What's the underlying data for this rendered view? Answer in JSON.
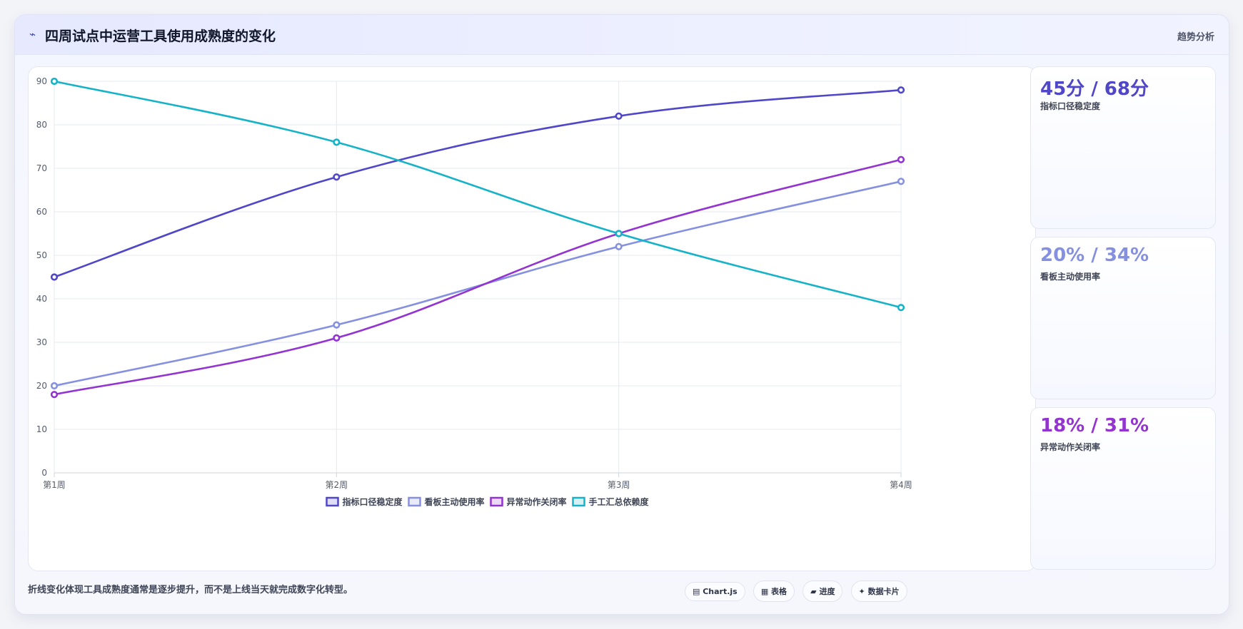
{
  "header": {
    "icon": "⌁",
    "title": "四周试点中运营工具使用成熟度的变化",
    "right_label": "趋势分析"
  },
  "chart_data": {
    "type": "line",
    "categories": [
      "第1周",
      "第2周",
      "第3周",
      "第4周"
    ],
    "ylim": [
      0,
      90
    ],
    "yticks": [
      0,
      10,
      20,
      30,
      40,
      50,
      60,
      70,
      80,
      90
    ],
    "grid": true,
    "legend_position": "bottom",
    "series": [
      {
        "name": "指标口径稳定度",
        "values": [
          45,
          68,
          82,
          88
        ],
        "color": "#4f46c8"
      },
      {
        "name": "看板主动使用率",
        "values": [
          20,
          34,
          52,
          67
        ],
        "color": "#8590e0"
      },
      {
        "name": "异常动作关闭率",
        "values": [
          18,
          31,
          55,
          72
        ],
        "color": "#9333d0"
      },
      {
        "name": "手工汇总依赖度",
        "values": [
          90,
          76,
          55,
          38
        ],
        "color": "#16b3c8"
      }
    ]
  },
  "stats": [
    {
      "value": "45分 / 68分",
      "label": "指标口径稳定度",
      "color": "#4f46c8"
    },
    {
      "value": "20% / 34%",
      "label": "看板主动使用率",
      "color": "#8590e0"
    },
    {
      "value": "18% / 31%",
      "label": "异常动作关闭率",
      "color": "#9333d0"
    }
  ],
  "footer": {
    "note": "折线变化体现工具成熟度通常是逐步提升，而不是上线当天就完成数字化转型。",
    "chips": [
      "▤ Chart.js",
      "▦ 表格",
      "▰ 进度",
      "✦ 数据卡片"
    ]
  }
}
